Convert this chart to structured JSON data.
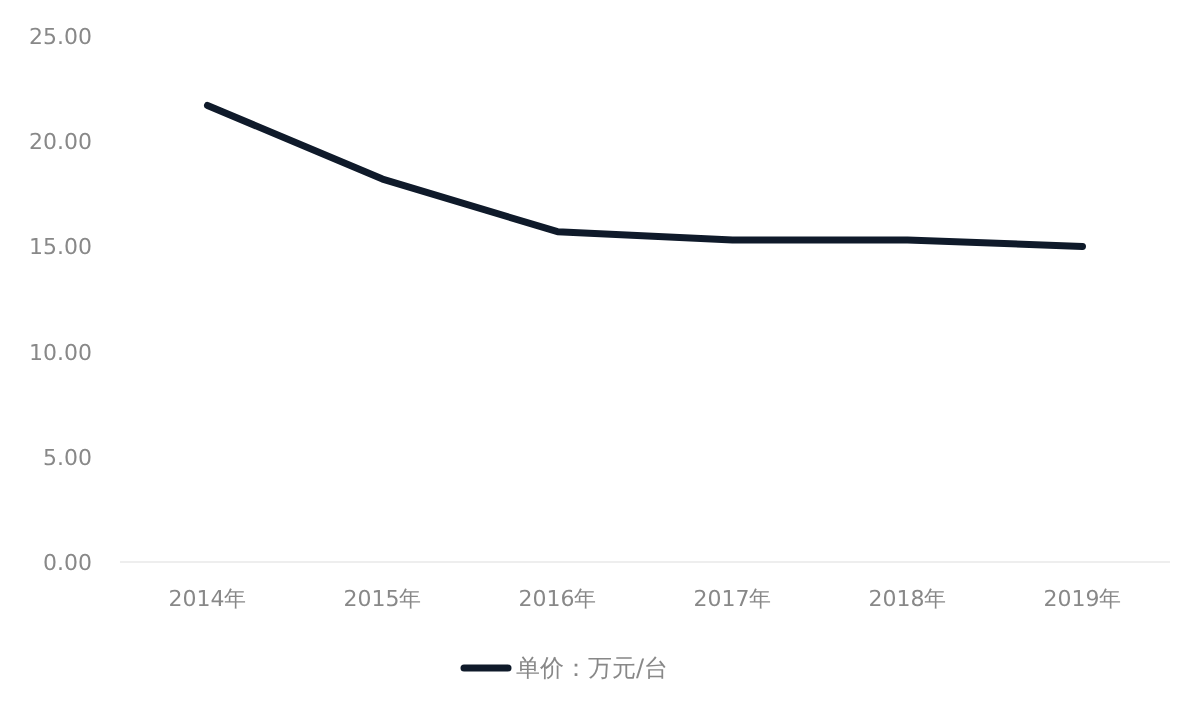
{
  "chart_data": {
    "type": "line",
    "categories": [
      "2014年",
      "2015年",
      "2016年",
      "2017年",
      "2018年",
      "2019年"
    ],
    "series": [
      {
        "name": "单价：万元/台",
        "color": "#0f1a2a",
        "values": [
          21.7,
          18.2,
          15.7,
          15.3,
          15.3,
          15.0
        ]
      }
    ],
    "ylim": [
      0,
      25
    ],
    "yticks": [
      {
        "value": 0,
        "label": "0.00"
      },
      {
        "value": 5,
        "label": "5.00"
      },
      {
        "value": 10,
        "label": "10.00"
      },
      {
        "value": 15,
        "label": "15.00"
      },
      {
        "value": 20,
        "label": "20.00"
      },
      {
        "value": 25,
        "label": "25.00"
      }
    ],
    "legend": "bottom",
    "grid": false,
    "marker": "none",
    "line_style": "solid"
  }
}
